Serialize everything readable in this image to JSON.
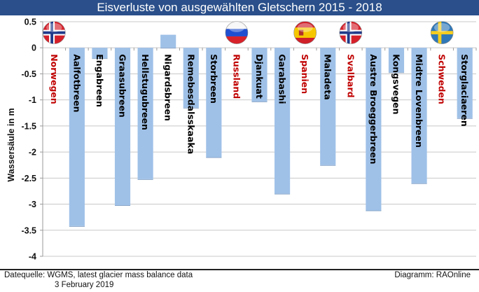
{
  "title": "Eisverluste von ausgewählten Gletschern 2015 - 2018",
  "footer": {
    "source": "Datequelle: WGMS, latest glacier mass balance data",
    "date": "3 February 2019",
    "credit": "Diagramm: RAOnline"
  },
  "colors": {
    "title_bg": "#2a4f8a",
    "bar": "#9fc1e8",
    "country_label": "#c00000",
    "glacier_label": "#000000",
    "grid": "#c8c8c8"
  },
  "chart_data": {
    "type": "bar",
    "title": "Eisverluste von ausgewählten Gletschern 2015 - 2018",
    "xlabel": "",
    "ylabel": "Wassersäule in m",
    "ylim": [
      -4,
      0.5
    ],
    "yticks": [
      0.5,
      0,
      -0.5,
      -1,
      -1.5,
      -2,
      -2.5,
      -3,
      -3.5,
      -4
    ],
    "ytick_labels": [
      "0.5",
      "0",
      "-0.5",
      "-1",
      "-1.5",
      "-2",
      "-2.5",
      "-3",
      "-3.5",
      "-4"
    ],
    "grid": true,
    "categories": [
      "Norwegen",
      "Aalfotbreen",
      "Engabreen",
      "Graasubreen",
      "Hellstugubreen",
      "Nigardsbreen",
      "Remebesdalsskaaka",
      "Storbreen",
      "Russland",
      "Djankuat",
      "Garabashi",
      "Spanien",
      "Maladeta",
      "Svalbard",
      "Austre Broeggerbreen",
      "Kongsvegen",
      "Midtre Lovenbreen",
      "Schweden",
      "Storglaciaeren"
    ],
    "category_kind": [
      "country",
      "glacier",
      "glacier",
      "glacier",
      "glacier",
      "glacier",
      "glacier",
      "glacier",
      "country",
      "glacier",
      "glacier",
      "country",
      "glacier",
      "country",
      "glacier",
      "glacier",
      "glacier",
      "country",
      "glacier"
    ],
    "values": [
      null,
      -3.42,
      -0.2,
      -3.02,
      -2.52,
      0.25,
      -1.15,
      -2.1,
      null,
      -1.03,
      -2.8,
      null,
      -2.25,
      null,
      -3.12,
      -0.47,
      -2.6,
      null,
      -1.35
    ],
    "flags": {
      "Norwegen": "norway-flag",
      "Russland": "russia-flag",
      "Spanien": "spain-flag",
      "Svalbard": "norway-flag",
      "Schweden": "sweden-flag"
    }
  }
}
